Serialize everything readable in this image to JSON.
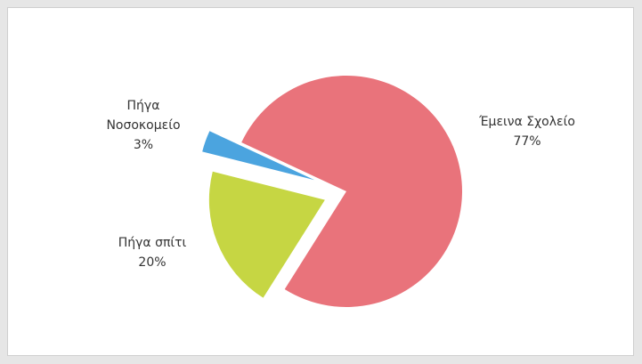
{
  "chart_data": {
    "type": "pie",
    "categories": [
      "Έμεινα Σχολείο",
      "Πήγα σπίτι",
      "Πήγα Νοσοκομείο"
    ],
    "values": [
      77,
      20,
      3
    ],
    "value_labels": [
      "77%",
      "20%",
      "3%"
    ],
    "colors": [
      "#e9737b",
      "#c6d643",
      "#4ba4df"
    ]
  }
}
